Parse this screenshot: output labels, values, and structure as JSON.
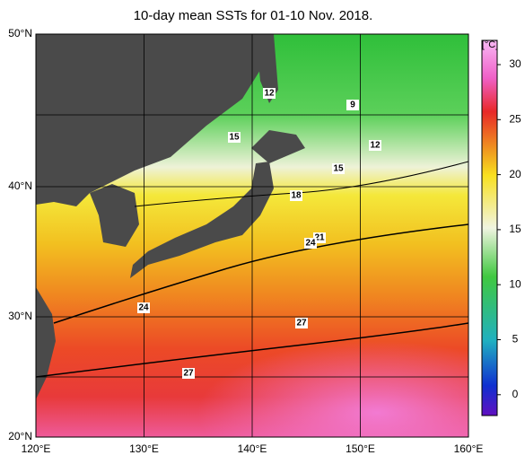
{
  "title": "10-day mean SSTs for 01-10 Nov. 2018.",
  "lat_labels": [
    "50°N",
    "40°N",
    "30°N",
    "20°N"
  ],
  "lon_labels": [
    "120°E",
    "130°E",
    "140°E",
    "150°E",
    "160°E"
  ],
  "colorbar": {
    "unit": "[°C]",
    "ticks": [
      "30",
      "25",
      "20",
      "15",
      "10",
      "5",
      "0"
    ]
  },
  "contour_labels": [
    "12",
    "9",
    "15",
    "12",
    "15",
    "18",
    "21",
    "24",
    "24",
    "27",
    "27"
  ]
}
